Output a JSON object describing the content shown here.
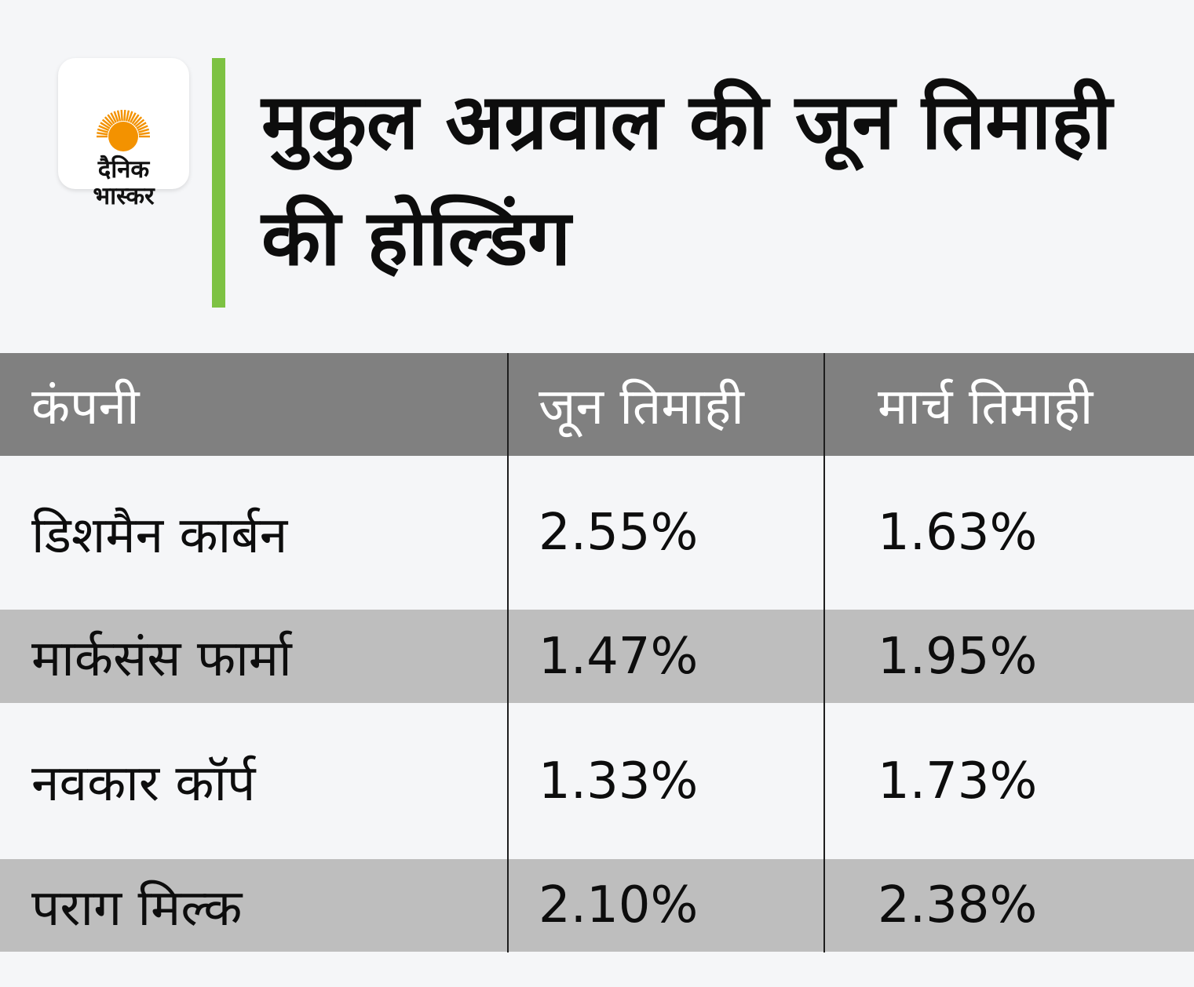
{
  "logo": {
    "line1": "दैनिक",
    "line2": "भास्कर",
    "sun_color": "#f39200",
    "icon": "sun-icon"
  },
  "colors": {
    "accent": "#7dc243",
    "header_bg": "#808080",
    "alt_row_bg": "#bebebe",
    "page_bg": "#f5f6f8"
  },
  "title": "मुकुल अग्रवाल की जून तिमाही की होल्डिंग",
  "chart_data": {
    "type": "table",
    "title": "मुकुल अग्रवाल की जून तिमाही की होल्डिंग",
    "columns": [
      "कंपनी",
      "जून तिमाही",
      "मार्च तिमाही"
    ],
    "rows": [
      [
        "डिशमैन कार्बन",
        "2.55%",
        "1.63%"
      ],
      [
        "मार्कसंस फार्मा",
        "1.47%",
        "1.95%"
      ],
      [
        "नवकार कॉर्प",
        "1.33%",
        "1.73%"
      ],
      [
        "पराग मिल्क",
        "2.10%",
        "2.38%"
      ]
    ]
  }
}
